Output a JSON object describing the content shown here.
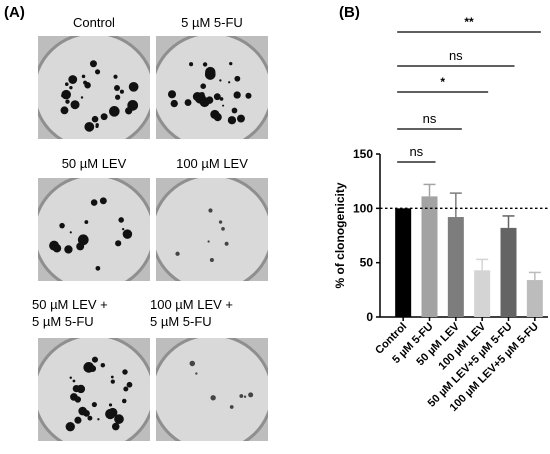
{
  "panel_a": {
    "label": "(A)",
    "plates": [
      {
        "label_lines": [
          "Control"
        ],
        "colonies": "many"
      },
      {
        "label_lines": [
          "5 µM 5-FU"
        ],
        "colonies": "many"
      },
      {
        "label_lines": [
          "50 µM LEV"
        ],
        "colonies": "medium"
      },
      {
        "label_lines": [
          "100 µM LEV"
        ],
        "colonies": "few"
      },
      {
        "label_lines": [
          "50 µM LEV +",
          "5 µM 5-FU"
        ],
        "colonies": "many"
      },
      {
        "label_lines": [
          "100 µM LEV +",
          "5 µM 5-FU"
        ],
        "colonies": "few"
      }
    ]
  },
  "panel_b": {
    "label": "(B)"
  },
  "chart_data": {
    "type": "bar",
    "categories": [
      "Control",
      "5 µM 5-FU",
      "50 µM LEV",
      "100 µM LEV",
      "50 µM LEV+5 µM 5-FU",
      "100 µM LEV+5 µM 5-FU"
    ],
    "values": [
      100,
      111,
      92,
      43,
      82,
      34
    ],
    "errors": [
      0,
      11,
      22,
      10,
      11,
      7
    ],
    "bar_colors": [
      "#000000",
      "#a3a3a3",
      "#7d7d7d",
      "#d4d4d4",
      "#646464",
      "#bcbcbc"
    ],
    "ylabel": "% of clonogenicity",
    "ylim": [
      0,
      150
    ],
    "yticks": [
      0,
      50,
      100,
      150
    ],
    "reference_line": 100,
    "comparisons": [
      {
        "from": 0,
        "to": 1,
        "label": "ns"
      },
      {
        "from": 0,
        "to": 2,
        "label": "ns"
      },
      {
        "from": 0,
        "to": 3,
        "label": "*"
      },
      {
        "from": 0,
        "to": 4,
        "label": "ns"
      },
      {
        "from": 0,
        "to": 5,
        "label": "**"
      }
    ]
  }
}
